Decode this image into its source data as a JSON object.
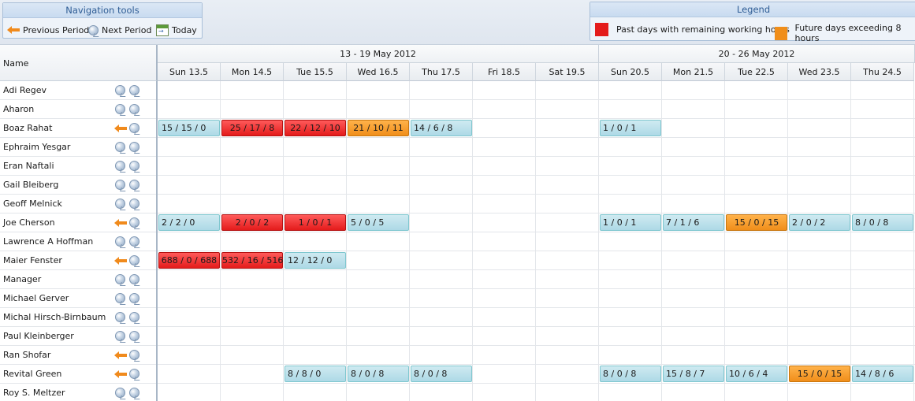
{
  "nav": {
    "title": "Navigation tools",
    "previous_label": "Previous Period",
    "next_label": "Next Period",
    "today_label": "Today"
  },
  "legend": {
    "title": "Legend",
    "past_label": "Past days with remaining working hours",
    "past_color": "#e41b1b",
    "future_label": "Future days exceeding 8 hours",
    "future_color": "#f08e1a"
  },
  "grid": {
    "name_header": "Name",
    "weeks": [
      {
        "label": "13 - 19 May 2012",
        "days": 7
      },
      {
        "label": "20 - 26 May 2012",
        "days": 5
      }
    ],
    "days": [
      "Sun 13.5",
      "Mon 14.5",
      "Tue 15.5",
      "Wed 16.5",
      "Thu 17.5",
      "Fri 18.5",
      "Sat 19.5",
      "Sun 20.5",
      "Mon 21.5",
      "Tue 22.5",
      "Wed 23.5",
      "Thu 24.5"
    ],
    "rows": [
      {
        "name": "Adi Regev",
        "icon": "globe-icon",
        "cells": []
      },
      {
        "name": "Aharon",
        "icon": "globe-icon",
        "cells": []
      },
      {
        "name": "Boaz Rahat",
        "icon": "arrow-left-icon",
        "cells": [
          {
            "day": 0,
            "text": "15 / 15 / 0",
            "status": "normal"
          },
          {
            "day": 1,
            "text": "25 / 17 / 8",
            "status": "red"
          },
          {
            "day": 2,
            "text": "22 / 12 / 10",
            "status": "red"
          },
          {
            "day": 3,
            "text": "21 / 10 / 11",
            "status": "orange"
          },
          {
            "day": 4,
            "text": "14 / 6 / 8",
            "status": "normal"
          },
          {
            "day": 7,
            "text": "1 / 0 / 1",
            "status": "normal"
          }
        ]
      },
      {
        "name": "Ephraim Yesgar",
        "icon": "globe-icon",
        "cells": []
      },
      {
        "name": "Eran Naftali",
        "icon": "globe-icon",
        "cells": []
      },
      {
        "name": "Gail Bleiberg",
        "icon": "globe-icon",
        "cells": []
      },
      {
        "name": "Geoff Melnick",
        "icon": "globe-icon",
        "cells": []
      },
      {
        "name": "Joe Cherson",
        "icon": "arrow-left-icon",
        "cells": [
          {
            "day": 0,
            "text": "2 / 2 / 0",
            "status": "normal"
          },
          {
            "day": 1,
            "text": "2 / 0 / 2",
            "status": "red"
          },
          {
            "day": 2,
            "text": "1 / 0 / 1",
            "status": "red"
          },
          {
            "day": 3,
            "text": "5 / 0 / 5",
            "status": "normal"
          },
          {
            "day": 7,
            "text": "1 / 0 / 1",
            "status": "normal"
          },
          {
            "day": 8,
            "text": "7 / 1 / 6",
            "status": "normal"
          },
          {
            "day": 9,
            "text": "15 / 0 / 15",
            "status": "orange"
          },
          {
            "day": 10,
            "text": "2 / 0 / 2",
            "status": "normal"
          },
          {
            "day": 11,
            "text": "8 / 0 / 8",
            "status": "normal"
          }
        ]
      },
      {
        "name": "Lawrence A Hoffman",
        "icon": "globe-icon",
        "cells": []
      },
      {
        "name": "Maier Fenster",
        "icon": "arrow-left-icon",
        "cells": [
          {
            "day": 0,
            "text": "688 / 0 / 688",
            "status": "red"
          },
          {
            "day": 1,
            "text": "532 / 16 / 516",
            "status": "red"
          },
          {
            "day": 2,
            "text": "12 / 12 / 0",
            "status": "normal"
          }
        ]
      },
      {
        "name": "Manager",
        "icon": "globe-icon",
        "cells": []
      },
      {
        "name": "Michael Gerver",
        "icon": "globe-icon",
        "cells": []
      },
      {
        "name": "Michal Hirsch-Birnbaum",
        "icon": "globe-icon",
        "cells": []
      },
      {
        "name": "Paul Kleinberger",
        "icon": "globe-icon",
        "cells": []
      },
      {
        "name": "Ran Shofar",
        "icon": "arrow-left-icon",
        "cells": []
      },
      {
        "name": "Revital Green",
        "icon": "arrow-left-icon",
        "cells": [
          {
            "day": 2,
            "text": "8 / 8 / 0",
            "status": "normal"
          },
          {
            "day": 3,
            "text": "8 / 0 / 8",
            "status": "normal"
          },
          {
            "day": 4,
            "text": "8 / 0 / 8",
            "status": "normal"
          },
          {
            "day": 7,
            "text": "8 / 0 / 8",
            "status": "normal"
          },
          {
            "day": 8,
            "text": "15 / 8 / 7",
            "status": "normal"
          },
          {
            "day": 9,
            "text": "10 / 6 / 4",
            "status": "normal"
          },
          {
            "day": 10,
            "text": "15 / 0 / 15",
            "status": "orange"
          },
          {
            "day": 11,
            "text": "14 / 8 / 6",
            "status": "normal"
          }
        ]
      },
      {
        "name": "Roy S. Meltzer",
        "icon": "globe-icon",
        "cells": []
      }
    ]
  }
}
